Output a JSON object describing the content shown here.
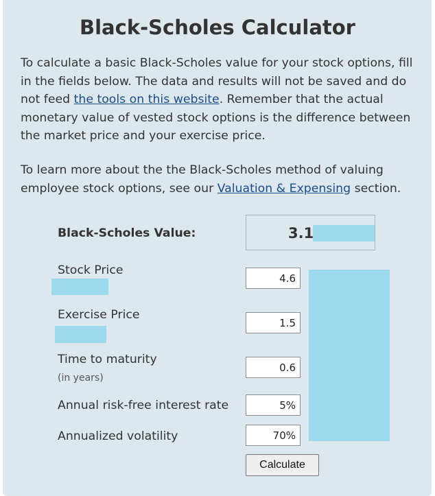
{
  "title": "Black-Scholes Calculator",
  "intro": {
    "part1": "To calculate a basic Black-Scholes value for your stock options, fill in the fields below. The data and results will not be saved and do not feed ",
    "link_text": "the tools on this website",
    "part2": ". Remember that the actual monetary value of vested stock options is the difference between the market price and your exercise price."
  },
  "learn_more": {
    "part1": "To learn more about the the Black-Scholes method of valuing employee stock options, see our ",
    "link_text": "Valuation & Expensing",
    "part2": " section."
  },
  "result": {
    "label": "Black-Scholes Value:",
    "value": "3.1"
  },
  "fields": {
    "stock_price": {
      "label": "Stock Price",
      "value": "4.6"
    },
    "exercise_price": {
      "label": "Exercise Price",
      "value": "1.5"
    },
    "time_to_maturity": {
      "label": "Time to maturity",
      "sublabel": "(in years)",
      "value": "0.6"
    },
    "risk_free_rate": {
      "label": "Annual risk-free interest rate",
      "value": "5%"
    },
    "volatility": {
      "label": "Annualized volatility",
      "value": "70%"
    }
  },
  "calculate_label": "Calculate",
  "colors": {
    "panel_background": "#dde7ee",
    "link": "#1a4d8a",
    "redaction": "#9cd9ea"
  }
}
